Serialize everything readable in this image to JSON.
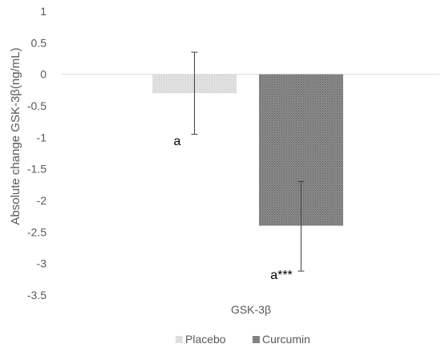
{
  "chart_data": {
    "type": "bar",
    "title": "",
    "xlabel": "GSK-3β",
    "ylabel": "Absolute change GSK-3β(ng/mL)",
    "ylim": [
      -3.5,
      1
    ],
    "yticks": [
      1,
      0.5,
      0,
      -0.5,
      -1,
      -1.5,
      -2,
      -2.5,
      -3,
      -3.5
    ],
    "ytick_labels": [
      "1",
      "0.5",
      "0",
      "-0.5",
      "-1",
      "-1.5",
      "-2",
      "-2.5",
      "-3",
      "-3.5"
    ],
    "categories": [
      "GSK-3β"
    ],
    "grid": false,
    "legend_position": "bottom",
    "series": [
      {
        "name": "Placebo",
        "values": [
          -0.3
        ],
        "error_low": [
          -0.95
        ],
        "error_high": [
          0.35
        ],
        "annotation": "a",
        "pattern": "light-dotted",
        "color": "#d9d9d9"
      },
      {
        "name": "Curcumin",
        "values": [
          -2.4
        ],
        "error_low": [
          -3.12
        ],
        "error_high": [
          -1.7
        ],
        "annotation": "a***",
        "pattern": "dark-dotted",
        "color": "#7f7f7f"
      }
    ]
  }
}
